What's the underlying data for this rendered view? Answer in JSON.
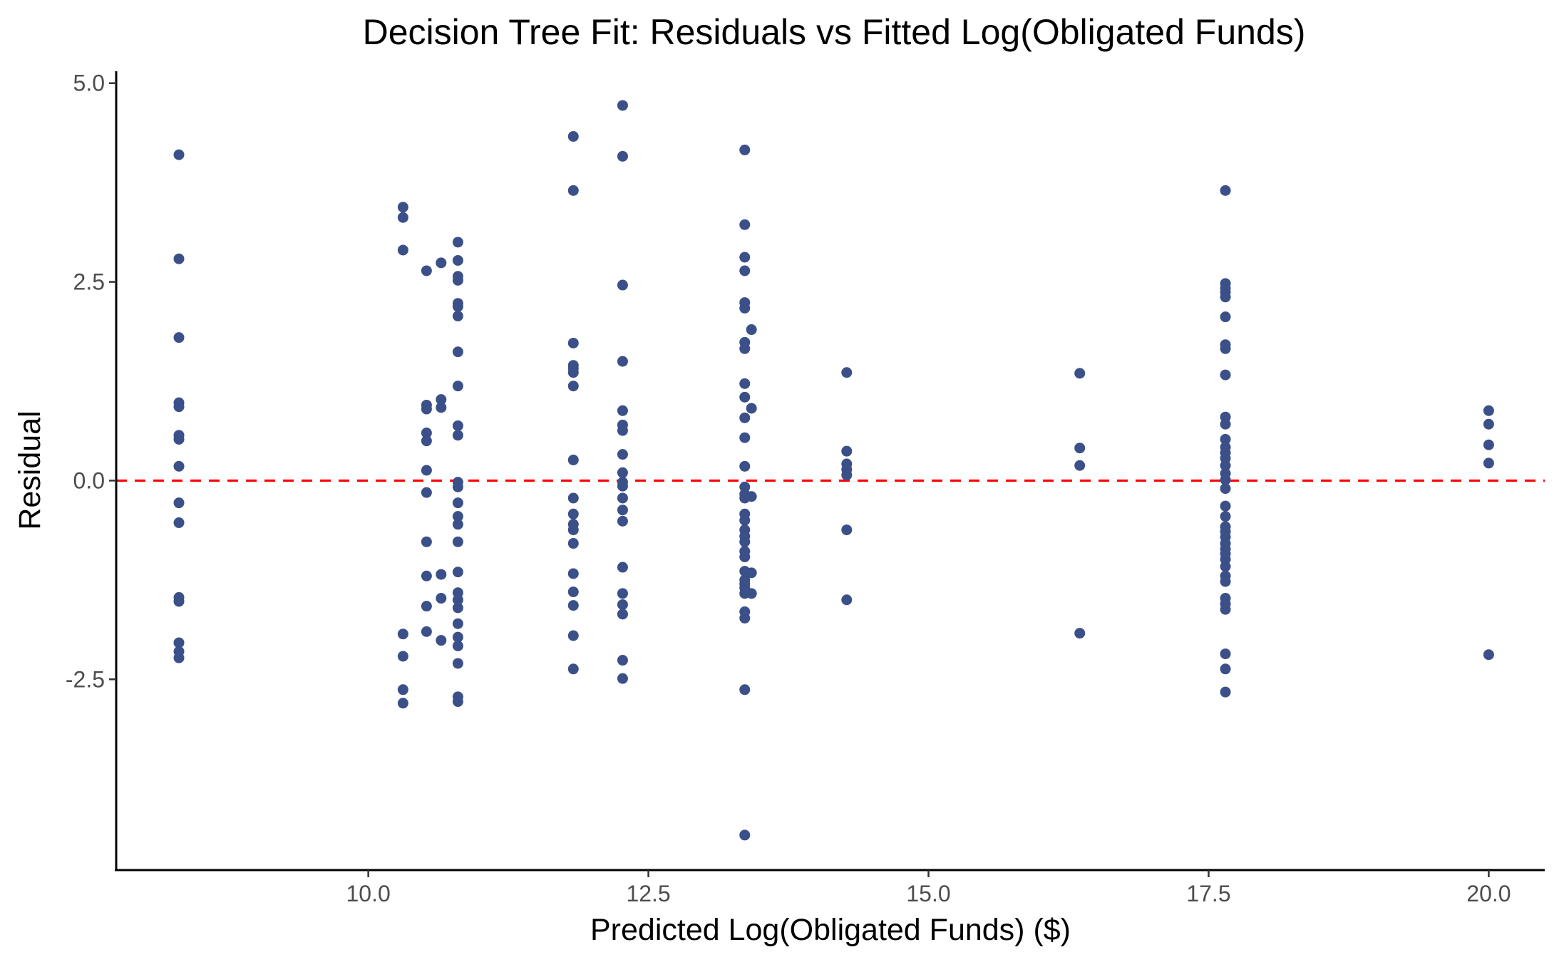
{
  "chart_data": {
    "type": "scatter",
    "title": "Decision Tree Fit: Residuals vs Fitted Log(Obligated Funds)",
    "xlabel": "Predicted Log(Obligated Funds) ($)",
    "ylabel": "Residual",
    "xlim": [
      7.75,
      20.5
    ],
    "ylim": [
      -4.9,
      5.15
    ],
    "xticks": [
      10.0,
      12.5,
      15.0,
      17.5,
      20.0
    ],
    "xtick_labels": [
      "10.0",
      "12.5",
      "15.0",
      "17.5",
      "20.0"
    ],
    "yticks": [
      -2.5,
      0.0,
      2.5,
      5.0
    ],
    "ytick_labels": [
      "-2.5",
      "0.0",
      "2.5",
      "5.0"
    ],
    "grid": false,
    "reference_line": {
      "y": 0.0,
      "style": "dashed",
      "color": "#ff0000"
    },
    "point_color": "#3b5088",
    "series": [
      {
        "points": [
          [
            8.31,
            4.1
          ],
          [
            8.31,
            2.79
          ],
          [
            8.31,
            1.8
          ],
          [
            8.31,
            0.98
          ],
          [
            8.31,
            0.93
          ],
          [
            8.31,
            0.57
          ],
          [
            8.31,
            0.52
          ],
          [
            8.31,
            0.18
          ],
          [
            8.31,
            -0.28
          ],
          [
            8.31,
            -0.53
          ],
          [
            8.31,
            -1.47
          ],
          [
            8.31,
            -1.52
          ],
          [
            8.31,
            -2.04
          ],
          [
            8.31,
            -2.15
          ],
          [
            8.31,
            -2.23
          ],
          [
            10.31,
            3.44
          ],
          [
            10.31,
            3.31
          ],
          [
            10.31,
            2.9
          ],
          [
            10.31,
            -1.93
          ],
          [
            10.31,
            -2.21
          ],
          [
            10.31,
            -2.63
          ],
          [
            10.31,
            -2.8
          ],
          [
            10.52,
            2.64
          ],
          [
            10.52,
            0.95
          ],
          [
            10.52,
            0.9
          ],
          [
            10.52,
            0.6
          ],
          [
            10.52,
            0.5
          ],
          [
            10.52,
            0.13
          ],
          [
            10.52,
            -0.15
          ],
          [
            10.52,
            -0.77
          ],
          [
            10.52,
            -1.2
          ],
          [
            10.52,
            -1.58
          ],
          [
            10.52,
            -1.9
          ],
          [
            10.65,
            2.74
          ],
          [
            10.65,
            1.02
          ],
          [
            10.65,
            0.92
          ],
          [
            10.65,
            -1.18
          ],
          [
            10.65,
            -1.48
          ],
          [
            10.65,
            -2.01
          ],
          [
            10.8,
            3.0
          ],
          [
            10.8,
            2.77
          ],
          [
            10.8,
            2.57
          ],
          [
            10.8,
            2.52
          ],
          [
            10.8,
            2.23
          ],
          [
            10.8,
            2.19
          ],
          [
            10.8,
            2.07
          ],
          [
            10.8,
            1.62
          ],
          [
            10.8,
            1.19
          ],
          [
            10.8,
            0.69
          ],
          [
            10.8,
            0.57
          ],
          [
            10.8,
            -0.02
          ],
          [
            10.8,
            -0.08
          ],
          [
            10.8,
            -0.28
          ],
          [
            10.8,
            -0.45
          ],
          [
            10.8,
            -0.55
          ],
          [
            10.8,
            -0.77
          ],
          [
            10.8,
            -1.15
          ],
          [
            10.8,
            -1.41
          ],
          [
            10.8,
            -1.5
          ],
          [
            10.8,
            -1.6
          ],
          [
            10.8,
            -1.8
          ],
          [
            10.8,
            -1.97
          ],
          [
            10.8,
            -2.08
          ],
          [
            10.8,
            -2.3
          ],
          [
            10.8,
            -2.72
          ],
          [
            10.8,
            -2.78
          ],
          [
            11.83,
            4.33
          ],
          [
            11.83,
            3.65
          ],
          [
            11.83,
            1.73
          ],
          [
            11.83,
            1.45
          ],
          [
            11.83,
            1.41
          ],
          [
            11.83,
            1.36
          ],
          [
            11.83,
            1.19
          ],
          [
            11.83,
            0.26
          ],
          [
            11.83,
            -0.22
          ],
          [
            11.83,
            -0.42
          ],
          [
            11.83,
            -0.55
          ],
          [
            11.83,
            -0.62
          ],
          [
            11.83,
            -0.79
          ],
          [
            11.83,
            -1.17
          ],
          [
            11.83,
            -1.4
          ],
          [
            11.83,
            -1.57
          ],
          [
            11.83,
            -1.95
          ],
          [
            11.83,
            -2.37
          ],
          [
            12.27,
            4.72
          ],
          [
            12.27,
            4.08
          ],
          [
            12.27,
            2.46
          ],
          [
            12.27,
            1.5
          ],
          [
            12.27,
            0.88
          ],
          [
            12.27,
            0.7
          ],
          [
            12.27,
            0.63
          ],
          [
            12.27,
            0.33
          ],
          [
            12.27,
            0.1
          ],
          [
            12.27,
            -0.02
          ],
          [
            12.27,
            -0.07
          ],
          [
            12.27,
            -0.22
          ],
          [
            12.27,
            -0.37
          ],
          [
            12.27,
            -0.51
          ],
          [
            12.27,
            -1.09
          ],
          [
            12.27,
            -1.42
          ],
          [
            12.27,
            -1.56
          ],
          [
            12.27,
            -1.68
          ],
          [
            12.27,
            -2.26
          ],
          [
            12.27,
            -2.49
          ],
          [
            13.36,
            4.16
          ],
          [
            13.36,
            3.22
          ],
          [
            13.36,
            2.81
          ],
          [
            13.36,
            2.64
          ],
          [
            13.36,
            2.24
          ],
          [
            13.36,
            2.17
          ],
          [
            13.36,
            1.74
          ],
          [
            13.36,
            1.66
          ],
          [
            13.36,
            1.22
          ],
          [
            13.36,
            1.05
          ],
          [
            13.36,
            0.79
          ],
          [
            13.36,
            0.54
          ],
          [
            13.36,
            0.18
          ],
          [
            13.36,
            -0.08
          ],
          [
            13.36,
            -0.17
          ],
          [
            13.36,
            -0.22
          ],
          [
            13.36,
            -0.42
          ],
          [
            13.36,
            -0.5
          ],
          [
            13.36,
            -0.62
          ],
          [
            13.36,
            -0.7
          ],
          [
            13.36,
            -0.77
          ],
          [
            13.36,
            -0.89
          ],
          [
            13.36,
            -0.96
          ],
          [
            13.36,
            -1.14
          ],
          [
            13.36,
            -1.25
          ],
          [
            13.36,
            -1.3
          ],
          [
            13.36,
            -1.35
          ],
          [
            13.36,
            -1.42
          ],
          [
            13.36,
            -1.65
          ],
          [
            13.36,
            -1.73
          ],
          [
            13.36,
            -2.63
          ],
          [
            13.36,
            -4.46
          ],
          [
            13.42,
            1.9
          ],
          [
            13.42,
            0.91
          ],
          [
            13.42,
            -0.2
          ],
          [
            13.42,
            -1.16
          ],
          [
            13.42,
            -1.42
          ],
          [
            14.27,
            1.36
          ],
          [
            14.27,
            0.37
          ],
          [
            14.27,
            0.21
          ],
          [
            14.27,
            0.14
          ],
          [
            14.27,
            0.07
          ],
          [
            14.27,
            -0.62
          ],
          [
            14.27,
            -1.5
          ],
          [
            16.35,
            1.35
          ],
          [
            16.35,
            0.41
          ],
          [
            16.35,
            0.19
          ],
          [
            16.35,
            -1.92
          ],
          [
            17.65,
            3.65
          ],
          [
            17.65,
            2.48
          ],
          [
            17.65,
            2.42
          ],
          [
            17.65,
            2.37
          ],
          [
            17.65,
            2.31
          ],
          [
            17.65,
            2.06
          ],
          [
            17.65,
            1.71
          ],
          [
            17.65,
            1.66
          ],
          [
            17.65,
            1.33
          ],
          [
            17.65,
            0.8
          ],
          [
            17.65,
            0.71
          ],
          [
            17.65,
            0.52
          ],
          [
            17.65,
            0.42
          ],
          [
            17.65,
            0.35
          ],
          [
            17.65,
            0.28
          ],
          [
            17.65,
            0.19
          ],
          [
            17.65,
            0.09
          ],
          [
            17.65,
            0.01
          ],
          [
            17.65,
            -0.1
          ],
          [
            17.65,
            -0.32
          ],
          [
            17.65,
            -0.45
          ],
          [
            17.65,
            -0.58
          ],
          [
            17.65,
            -0.64
          ],
          [
            17.65,
            -0.71
          ],
          [
            17.65,
            -0.79
          ],
          [
            17.65,
            -0.86
          ],
          [
            17.65,
            -0.92
          ],
          [
            17.65,
            -0.99
          ],
          [
            17.65,
            -1.08
          ],
          [
            17.65,
            -1.2
          ],
          [
            17.65,
            -1.27
          ],
          [
            17.65,
            -1.48
          ],
          [
            17.65,
            -1.55
          ],
          [
            17.65,
            -1.62
          ],
          [
            17.65,
            -2.18
          ],
          [
            17.65,
            -2.37
          ],
          [
            17.65,
            -2.66
          ],
          [
            20.0,
            0.88
          ],
          [
            20.0,
            0.71
          ],
          [
            20.0,
            0.45
          ],
          [
            20.0,
            0.22
          ],
          [
            20.0,
            -2.19
          ]
        ]
      }
    ]
  }
}
